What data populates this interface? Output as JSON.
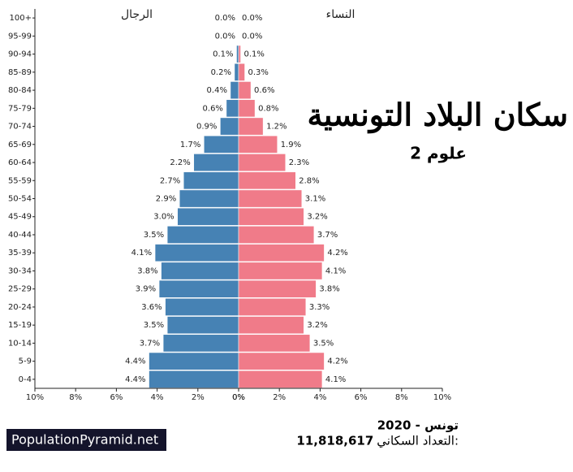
{
  "chart_data": {
    "type": "pyramid",
    "title": "سكان البلاد التونسية",
    "subtitle": "2 علوم",
    "categories": [
      "100+",
      "95-99",
      "90-94",
      "85-89",
      "80-84",
      "75-79",
      "70-74",
      "65-69",
      "60-64",
      "55-59",
      "50-54",
      "45-49",
      "40-44",
      "35-39",
      "30-34",
      "25-29",
      "20-24",
      "15-19",
      "10-14",
      "5-9",
      "0-4"
    ],
    "series": [
      {
        "name": "الرجال",
        "color": "#4682b4",
        "values": [
          0.0,
          0.0,
          0.1,
          0.2,
          0.4,
          0.6,
          0.9,
          1.7,
          2.2,
          2.7,
          2.9,
          3.0,
          3.5,
          4.1,
          3.8,
          3.9,
          3.6,
          3.5,
          3.7,
          4.4,
          4.4
        ],
        "value_labels": [
          "0.0%",
          "0.0%",
          "0.1%",
          "0.2%",
          "0.4%",
          "0.6%",
          "0.9%",
          "1.7%",
          "2.2%",
          "2.7%",
          "2.9%",
          "3.0%",
          "3.5%",
          "4.1%",
          "3.8%",
          "3.9%",
          "3.6%",
          "3.5%",
          "3.7%",
          "4.4%",
          "4.4%"
        ],
        "xlim": [
          10,
          0
        ],
        "xticks": [
          {
            "value": 10,
            "label": "10%"
          },
          {
            "value": 8,
            "label": "8%"
          },
          {
            "value": 6,
            "label": "6%"
          },
          {
            "value": 4,
            "label": "4%"
          },
          {
            "value": 2,
            "label": "2%"
          },
          {
            "value": 0,
            "label": "0%"
          }
        ]
      },
      {
        "name": "النساء",
        "color": "#f07b89",
        "values": [
          0.0,
          0.0,
          0.1,
          0.3,
          0.6,
          0.8,
          1.2,
          1.9,
          2.3,
          2.8,
          3.1,
          3.2,
          3.7,
          4.2,
          4.1,
          3.8,
          3.3,
          3.2,
          3.5,
          4.2,
          4.1
        ],
        "value_labels": [
          "0.0%",
          "0.0%",
          "0.1%",
          "0.3%",
          "0.6%",
          "0.8%",
          "1.2%",
          "1.9%",
          "2.3%",
          "2.8%",
          "3.1%",
          "3.2%",
          "3.7%",
          "4.2%",
          "4.1%",
          "3.8%",
          "3.3%",
          "3.2%",
          "3.5%",
          "4.2%",
          "4.1%"
        ],
        "xlim": [
          0,
          10
        ],
        "xticks": [
          {
            "value": 0,
            "label": "0%"
          },
          {
            "value": 2,
            "label": "2%"
          },
          {
            "value": 4,
            "label": "4%"
          },
          {
            "value": 6,
            "label": "6%"
          },
          {
            "value": 8,
            "label": "8%"
          },
          {
            "value": 10,
            "label": "10%"
          }
        ]
      }
    ],
    "location": "تونس - 2020",
    "population_label": "التعداد السكاني:",
    "population": "11,818,617",
    "source": "PopulationPyramid.net"
  }
}
